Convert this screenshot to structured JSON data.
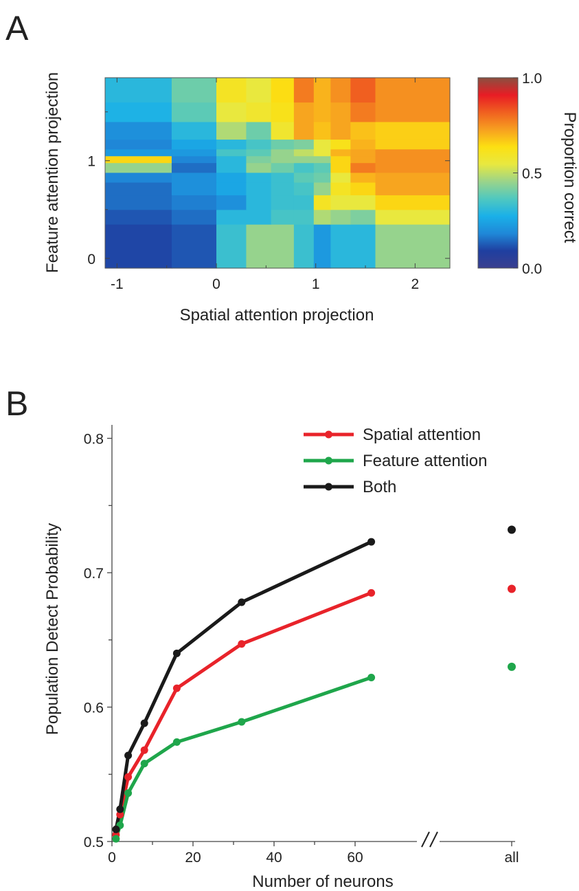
{
  "chart_data": [
    {
      "panel": "A",
      "type": "heatmap",
      "xlabel": "Spatial attention projection",
      "ylabel": "Feature attention projection",
      "x_ticks": [
        -1,
        0,
        1,
        2
      ],
      "y_ticks": [
        0,
        1
      ],
      "xlim": [
        -1.12,
        2.35
      ],
      "ylim": [
        -0.1,
        1.85
      ],
      "x_edges": [
        -1.12,
        -0.45,
        0,
        0.3,
        0.55,
        0.78,
        0.98,
        1.15,
        1.35,
        1.6,
        2.35
      ],
      "y_edges": [
        -0.1,
        0.35,
        0.5,
        0.65,
        0.78,
        0.88,
        0.98,
        1.05,
        1.12,
        1.22,
        1.4,
        1.6,
        1.85
      ],
      "values": [
        [
          0.1,
          0.12,
          0.33,
          0.45,
          0.45,
          0.33,
          0.22,
          0.3,
          0.3,
          0.45
        ],
        [
          0.12,
          0.15,
          0.3,
          0.3,
          0.35,
          0.35,
          0.48,
          0.45,
          0.42,
          0.55
        ],
        [
          0.15,
          0.17,
          0.2,
          0.3,
          0.33,
          0.33,
          0.6,
          0.55,
          0.55,
          0.65
        ],
        [
          0.15,
          0.2,
          0.25,
          0.3,
          0.33,
          0.35,
          0.45,
          0.6,
          0.65,
          0.72
        ],
        [
          0.18,
          0.2,
          0.25,
          0.3,
          0.33,
          0.38,
          0.4,
          0.55,
          0.7,
          0.72
        ],
        [
          0.45,
          0.15,
          0.3,
          0.45,
          0.4,
          0.35,
          0.38,
          0.65,
          0.78,
          0.75
        ],
        [
          0.65,
          0.18,
          0.3,
          0.42,
          0.45,
          0.45,
          0.45,
          0.65,
          0.72,
          0.75
        ],
        [
          0.22,
          0.22,
          0.35,
          0.38,
          0.45,
          0.5,
          0.55,
          0.7,
          0.72,
          0.75
        ],
        [
          0.18,
          0.25,
          0.3,
          0.35,
          0.4,
          0.42,
          0.55,
          0.62,
          0.7,
          0.66
        ],
        [
          0.2,
          0.3,
          0.48,
          0.4,
          0.58,
          0.72,
          0.68,
          0.72,
          0.68,
          0.66
        ],
        [
          0.28,
          0.38,
          0.55,
          0.58,
          0.62,
          0.72,
          0.7,
          0.72,
          0.78,
          0.75
        ],
        [
          0.3,
          0.4,
          0.6,
          0.55,
          0.64,
          0.78,
          0.7,
          0.75,
          0.82,
          0.75
        ]
      ],
      "colorbar": {
        "label": "Proportion correct",
        "range": [
          0,
          1
        ],
        "tick_labels": [
          "0.0",
          "0.5",
          "1.0"
        ],
        "tick_values": [
          0,
          0.5,
          1
        ],
        "colormap": [
          "#3a3f8f",
          "#1f3fa0",
          "#1f88d8",
          "#1ab0e8",
          "#4fc8c0",
          "#9ad48a",
          "#e8e840",
          "#fce012",
          "#f7a020",
          "#f06020",
          "#e81c24",
          "#8a5040"
        ]
      }
    },
    {
      "panel": "B",
      "type": "line",
      "xlabel": "Number of neurons",
      "ylabel": "Population Detect Probability",
      "xlim": [
        0,
        80
      ],
      "ylim": [
        0.5,
        0.81
      ],
      "x_ticks": [
        0,
        20,
        40,
        60
      ],
      "y_ticks": [
        "0.5",
        "0.6",
        "0.7",
        "0.8"
      ],
      "y_tick_values": [
        0.5,
        0.6,
        0.7,
        0.8
      ],
      "extra_x_label": "all",
      "legend_position": "top-right",
      "series": [
        {
          "name": "Spatial attention",
          "color": "#e8232a",
          "x": [
            1,
            2,
            4,
            8,
            16,
            32,
            64
          ],
          "y": [
            0.505,
            0.52,
            0.548,
            0.568,
            0.614,
            0.647,
            0.685
          ],
          "all": 0.688
        },
        {
          "name": "Feature attention",
          "color": "#1fa64b",
          "x": [
            1,
            2,
            4,
            8,
            16,
            32,
            64
          ],
          "y": [
            0.502,
            0.512,
            0.536,
            0.558,
            0.574,
            0.589,
            0.622
          ],
          "all": 0.63
        },
        {
          "name": "Both",
          "color": "#1a1a1a",
          "x": [
            1,
            2,
            4,
            8,
            16,
            32,
            64
          ],
          "y": [
            0.509,
            0.524,
            0.564,
            0.588,
            0.64,
            0.678,
            0.723
          ],
          "all": 0.732
        }
      ]
    }
  ],
  "panels": {
    "a_letter": "A",
    "b_letter": "B"
  }
}
